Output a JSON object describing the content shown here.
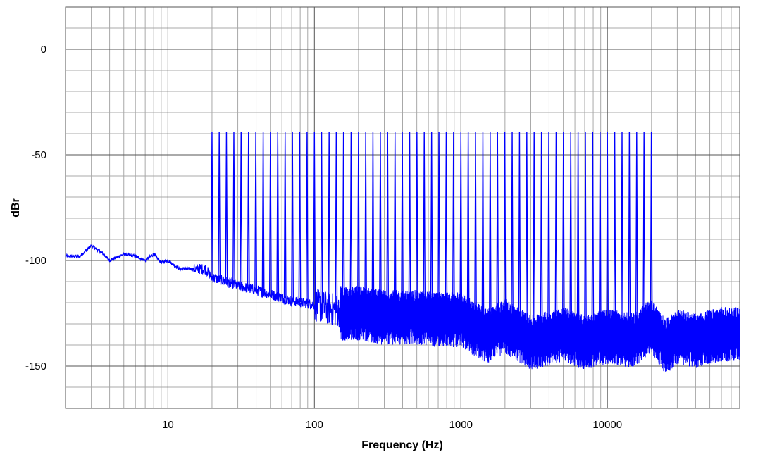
{
  "chart_data": {
    "type": "line",
    "title": "",
    "xlabel": "Frequency (Hz)",
    "ylabel": "dBr",
    "x_scale": "log",
    "xlim": [
      2,
      80000
    ],
    "ylim": [
      -170,
      20
    ],
    "x_ticks": [
      10,
      100,
      1000,
      10000
    ],
    "x_tick_labels": [
      "10",
      "100",
      "1000",
      "10000"
    ],
    "y_ticks": [
      0,
      -50,
      -100,
      -150
    ],
    "y_tick_labels": [
      "0",
      "-50",
      "-100",
      "-150"
    ],
    "grid": true,
    "line_color": "#0000ff",
    "series": [
      {
        "noise_floor": {
          "x": [
            2,
            2.5,
            3,
            3.5,
            4,
            5,
            6,
            7,
            8,
            9,
            10,
            12,
            15,
            18,
            20,
            25,
            30,
            40,
            50,
            70,
            100,
            150,
            200,
            300,
            500,
            700,
            1000,
            1500,
            2000,
            3000,
            5000,
            7000,
            10000,
            15000,
            20000,
            25000,
            30000,
            40000,
            60000,
            80000
          ],
          "y": [
            -98,
            -98,
            -93,
            -96,
            -100,
            -97,
            -98,
            -100,
            -97,
            -101,
            -100,
            -104,
            -104,
            -104,
            -108,
            -110,
            -112,
            -114,
            -116,
            -119,
            -121,
            -124,
            -124,
            -126,
            -126,
            -127,
            -127,
            -135,
            -130,
            -138,
            -134,
            -138,
            -135,
            -137,
            -130,
            -140,
            -135,
            -137,
            -134,
            -134
          ]
        },
        "tones_hz": [
          20,
          22.4,
          25.1,
          28.2,
          31.6,
          35.5,
          39.8,
          44.7,
          50.1,
          56.2,
          63.1,
          70.8,
          79.4,
          89.1,
          100,
          112,
          126,
          141,
          158,
          178,
          200,
          224,
          251,
          282,
          316,
          355,
          398,
          447,
          501,
          562,
          631,
          708,
          794,
          891,
          1000,
          1122,
          1259,
          1413,
          1585,
          1778,
          1995,
          2239,
          2512,
          2818,
          3162,
          3548,
          3981,
          4467,
          5012,
          5623,
          6310,
          7079,
          7943,
          8913,
          10000,
          11220,
          12589,
          14125,
          15849,
          17783,
          19953
        ],
        "tone_level_dbr": -39
      }
    ]
  }
}
